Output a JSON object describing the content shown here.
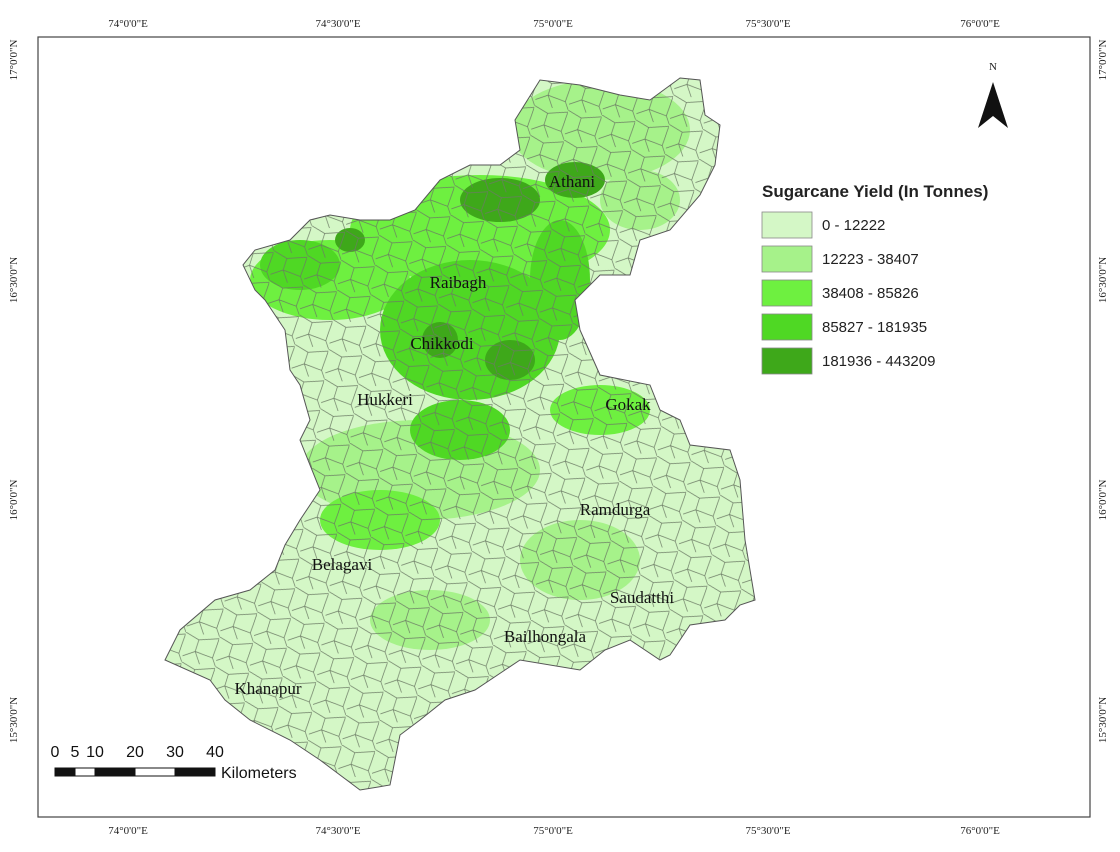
{
  "map": {
    "top_labels": [
      "74°0'0\"E",
      "74°30'0\"E",
      "75°0'0\"E",
      "75°30'0\"E",
      "76°0'0\"E"
    ],
    "bottom_labels": [
      "74°0'0\"E",
      "74°30'0\"E",
      "75°0'0\"E",
      "75°30'0\"E",
      "76°0'0\"E"
    ],
    "left_labels": [
      "17°0'0\"N",
      "16°30'0\"N",
      "16°0'0\"N",
      "15°30'0\"N"
    ],
    "right_labels": [
      "17°0'0\"N",
      "16°30'0\"N",
      "16°0'0\"N",
      "15°30'0\"N"
    ],
    "north": "N",
    "legend": {
      "title": "Sugarcane Yield (In Tonnes)",
      "items": [
        {
          "label": "0 - 12222",
          "color": "#d4f7c6"
        },
        {
          "label": "12223 - 38407",
          "color": "#a6f28a"
        },
        {
          "label": "38408 - 85826",
          "color": "#6ef040"
        },
        {
          "label": "85827 - 181935",
          "color": "#4fd824"
        },
        {
          "label": "181936 - 443209",
          "color": "#3ea81a"
        }
      ]
    },
    "places": [
      "Athani",
      "Raibagh",
      "Chikkodi",
      "Hukkeri",
      "Gokak",
      "Ramdurga",
      "Belagavi",
      "Saudatthi",
      "Bailhongala",
      "Khanapur"
    ],
    "scale": {
      "ticks": [
        0,
        5,
        10,
        20,
        30,
        40
      ],
      "unit": "Kilometers"
    }
  }
}
